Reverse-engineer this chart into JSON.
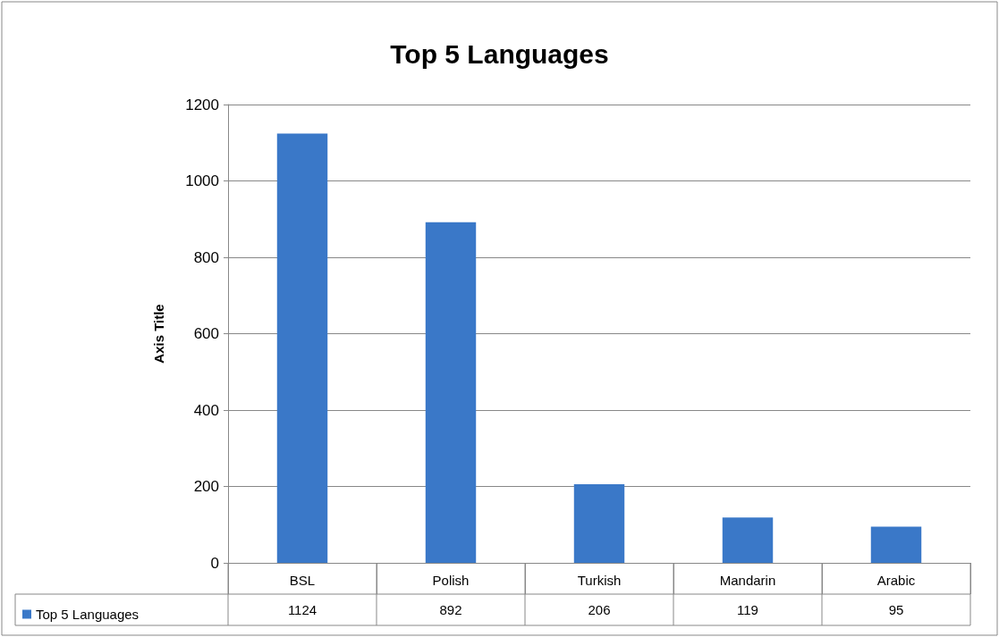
{
  "chart_data": {
    "type": "bar",
    "title": "Top 5 Languages",
    "ylabel": "Axis Title",
    "categories": [
      "BSL",
      "Polish",
      "Turkish",
      "Mandarin",
      "Arabic"
    ],
    "series": [
      {
        "name": "Top 5 Languages",
        "color": "#3a78c8",
        "values": [
          1124,
          892,
          206,
          119,
          95
        ]
      }
    ],
    "ylim": [
      0,
      1200
    ],
    "yticks": [
      0,
      200,
      400,
      600,
      800,
      1000,
      1200
    ],
    "grid": "y",
    "legend": "bottom",
    "data_labels": true
  }
}
